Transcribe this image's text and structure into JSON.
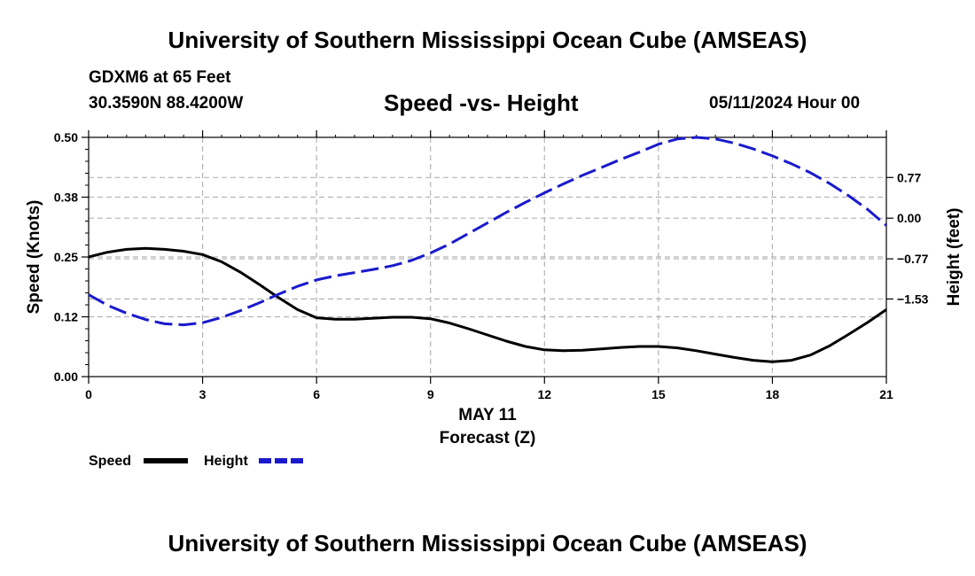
{
  "header": {
    "title": "University of Southern Mississippi Ocean Cube (AMSEAS)",
    "station": "GDXM6 at 65 Feet",
    "location": "30.3590N  88.4200W",
    "subtitle": "Speed -vs- Height",
    "datetime": "05/11/2024 Hour 00"
  },
  "footer": {
    "title": "University of Southern Mississippi Ocean Cube (AMSEAS)"
  },
  "colors": {
    "speed": "#000000",
    "height": "#1a1acc",
    "grid": "#b4b4b4"
  },
  "chart_data": {
    "type": "line",
    "title": "Speed -vs- Height",
    "xlabel": "Forecast (Z)",
    "xlabel_date": "MAY 11",
    "ylabel": "Speed (Knots)",
    "y2label": "Height (feet)",
    "xlim": [
      0,
      21
    ],
    "ylim": [
      0,
      0.5
    ],
    "y2lim": [
      -3.0,
      1.53
    ],
    "xticks": [
      0,
      3,
      6,
      9,
      12,
      15,
      18,
      21
    ],
    "xtick_labels": [
      "0",
      "3",
      "6",
      "9",
      "12",
      "15",
      "18",
      "21"
    ],
    "yticks": [
      0,
      0.125,
      0.25,
      0.375,
      0.5
    ],
    "ytick_labels": [
      "0.00",
      "0.12",
      "0.25",
      "0.38",
      "0.50"
    ],
    "y2ticks": [
      -1.53,
      -0.77,
      0.0,
      0.77
    ],
    "y2tick_labels": [
      "−1.53",
      "−0.77",
      "0.00",
      "0.77"
    ],
    "grid": true,
    "series": [
      {
        "name": "Speed",
        "axis": "left",
        "style": "solid",
        "x": [
          0,
          0.5,
          1,
          1.5,
          2,
          2.5,
          3,
          3.5,
          4,
          4.5,
          5,
          5.5,
          6,
          6.5,
          7,
          7.5,
          8,
          8.5,
          9,
          9.5,
          10,
          10.5,
          11,
          11.5,
          12,
          12.5,
          13,
          13.5,
          14,
          14.5,
          15,
          15.5,
          16,
          16.5,
          17,
          17.5,
          18,
          18.5,
          19,
          19.5,
          20,
          20.5,
          21
        ],
        "values": [
          0.25,
          0.26,
          0.266,
          0.268,
          0.266,
          0.262,
          0.255,
          0.24,
          0.218,
          0.192,
          0.165,
          0.14,
          0.123,
          0.12,
          0.12,
          0.122,
          0.124,
          0.124,
          0.121,
          0.112,
          0.1,
          0.087,
          0.074,
          0.063,
          0.056,
          0.054,
          0.055,
          0.058,
          0.061,
          0.063,
          0.063,
          0.06,
          0.054,
          0.047,
          0.04,
          0.034,
          0.031,
          0.034,
          0.045,
          0.064,
          0.088,
          0.113,
          0.14
        ]
      },
      {
        "name": "Height",
        "axis": "right",
        "style": "dashed",
        "x": [
          0,
          0.5,
          1,
          1.5,
          2,
          2.5,
          3,
          3.5,
          4,
          4.5,
          5,
          5.5,
          6,
          6.5,
          7,
          7.5,
          8,
          8.5,
          9,
          9.5,
          10,
          10.5,
          11,
          11.5,
          12,
          12.5,
          13,
          13.5,
          14,
          14.5,
          15,
          15.5,
          16,
          16.5,
          17,
          17.5,
          18,
          18.5,
          19,
          19.5,
          20,
          20.5,
          21
        ],
        "values": [
          -1.45,
          -1.65,
          -1.8,
          -1.92,
          -2.0,
          -2.02,
          -1.98,
          -1.88,
          -1.75,
          -1.6,
          -1.44,
          -1.29,
          -1.17,
          -1.09,
          -1.03,
          -0.97,
          -0.9,
          -0.8,
          -0.66,
          -0.49,
          -0.29,
          -0.09,
          0.11,
          0.3,
          0.48,
          0.65,
          0.81,
          0.96,
          1.11,
          1.25,
          1.4,
          1.5,
          1.53,
          1.5,
          1.42,
          1.31,
          1.18,
          1.03,
          0.86,
          0.66,
          0.43,
          0.17,
          -0.14
        ]
      }
    ],
    "legend": [
      {
        "label": "Speed",
        "style": "solid"
      },
      {
        "label": "Height",
        "style": "dashed"
      }
    ],
    "legend_position": "bottom-left"
  }
}
